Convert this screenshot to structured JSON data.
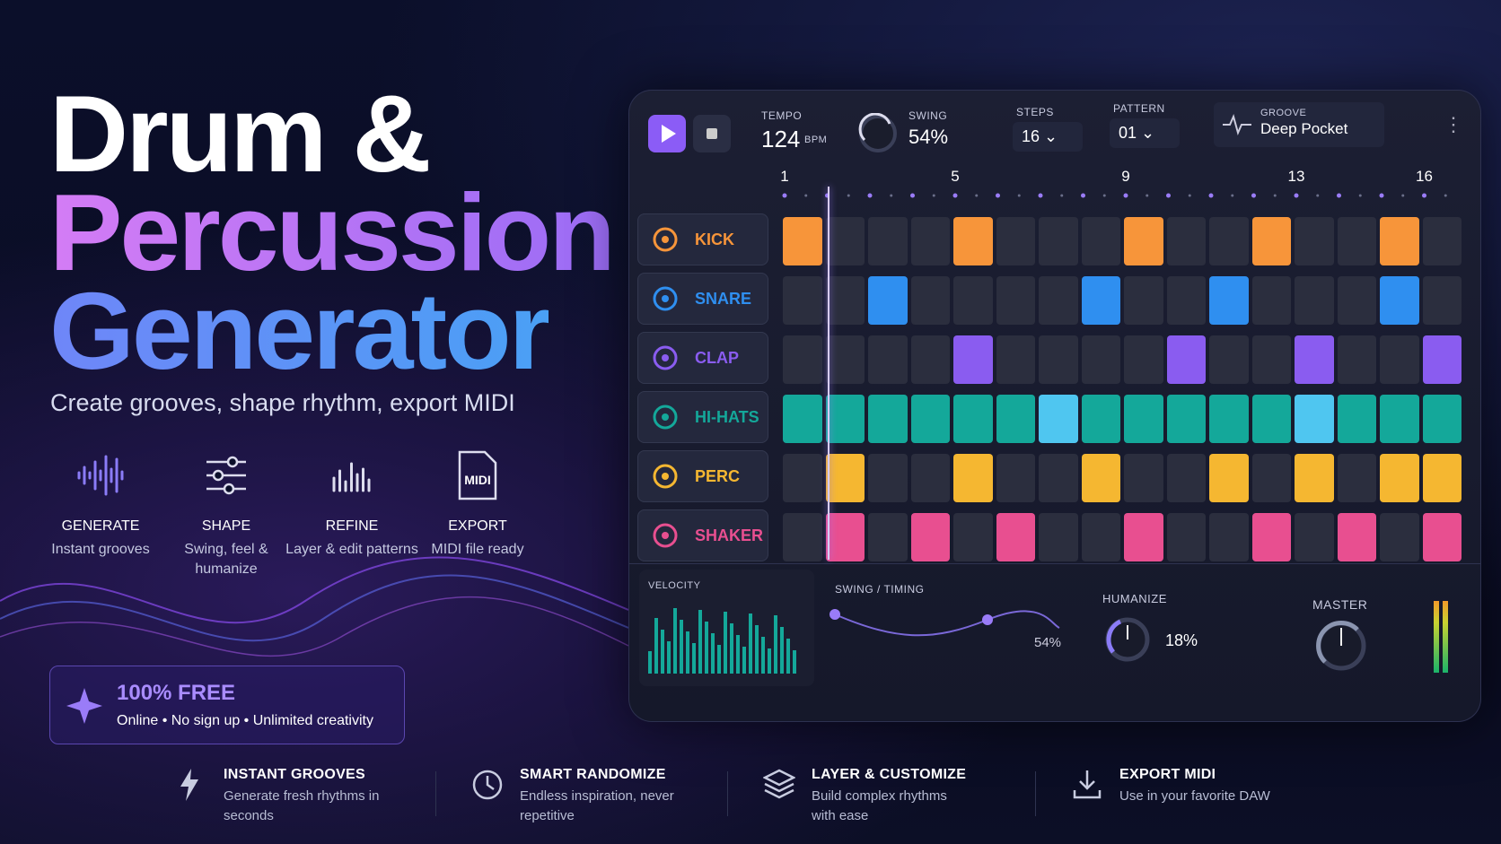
{
  "hero": {
    "title": [
      "Drum &",
      "Percussion",
      "Generator"
    ],
    "subtitle": "Create grooves, shape rhythm, export MIDI"
  },
  "features": [
    {
      "title": "GENERATE",
      "text": "Instant grooves"
    },
    {
      "title": "SHAPE",
      "text": "Swing, feel & humanize"
    },
    {
      "title": "REFINE",
      "text": "Layer & edit patterns"
    },
    {
      "title": "EXPORT",
      "text": "MIDI file ready",
      "icon": "MIDI"
    }
  ],
  "badge": {
    "title": "100% FREE",
    "text": "Online • No sign up • Unlimited creativity"
  },
  "toolbar": {
    "tempo": {
      "label": "TEMPO",
      "value": "124",
      "unit": "BPM"
    },
    "swing": {
      "label": "SWING",
      "value": "54%"
    },
    "steps": {
      "label": "STEPS",
      "value": "16"
    },
    "pattern": {
      "label": "PATTERN",
      "value": "01"
    },
    "groove": {
      "label": "GROOVE",
      "value": "Deep Pocket"
    }
  },
  "step_numbers": [
    {
      "step": 1,
      "label": "1"
    },
    {
      "step": 5,
      "label": "5"
    },
    {
      "step": 9,
      "label": "9"
    },
    {
      "step": 13,
      "label": "13"
    },
    {
      "step": 16,
      "label": "16"
    }
  ],
  "tracks": [
    {
      "name": "KICK",
      "color": "#f7953a",
      "active": [
        0,
        4,
        8,
        11,
        14
      ]
    },
    {
      "name": "SNARE",
      "color": "#2f8ff0",
      "active": [
        2,
        7,
        10,
        14
      ]
    },
    {
      "name": "CLAP",
      "color": "#8a5cf0",
      "active": [
        4,
        9,
        12,
        15
      ]
    },
    {
      "name": "HI-HATS",
      "color": "#14a89a",
      "active": [
        0,
        1,
        2,
        3,
        4,
        5,
        6,
        7,
        8,
        9,
        10,
        11,
        12,
        13,
        14,
        15
      ],
      "accent": [
        6,
        12
      ],
      "accent_color": "#4fc6f0"
    },
    {
      "name": "PERC",
      "color": "#f5b731",
      "active": [
        1,
        4,
        7,
        10,
        12,
        14,
        15
      ]
    },
    {
      "name": "SHAKER",
      "color": "#e84f90",
      "active": [
        1,
        3,
        5,
        8,
        11,
        13,
        15
      ]
    }
  ],
  "bottom": {
    "velocity": "VELOCITY",
    "swing_timing": {
      "label": "SWING / TIMING",
      "value": "54%"
    },
    "humanize": {
      "label": "HUMANIZE",
      "value": "18%"
    },
    "master": "MASTER"
  },
  "footer": [
    {
      "title": "INSTANT GROOVES",
      "text": "Generate fresh rhythms in seconds"
    },
    {
      "title": "SMART RANDOMIZE",
      "text": "Endless inspiration, never repetitive"
    },
    {
      "title": "LAYER & CUSTOMIZE",
      "text": "Build complex rhythms with ease"
    },
    {
      "title": "EXPORT MIDI",
      "text": "Use in your favorite DAW"
    }
  ]
}
